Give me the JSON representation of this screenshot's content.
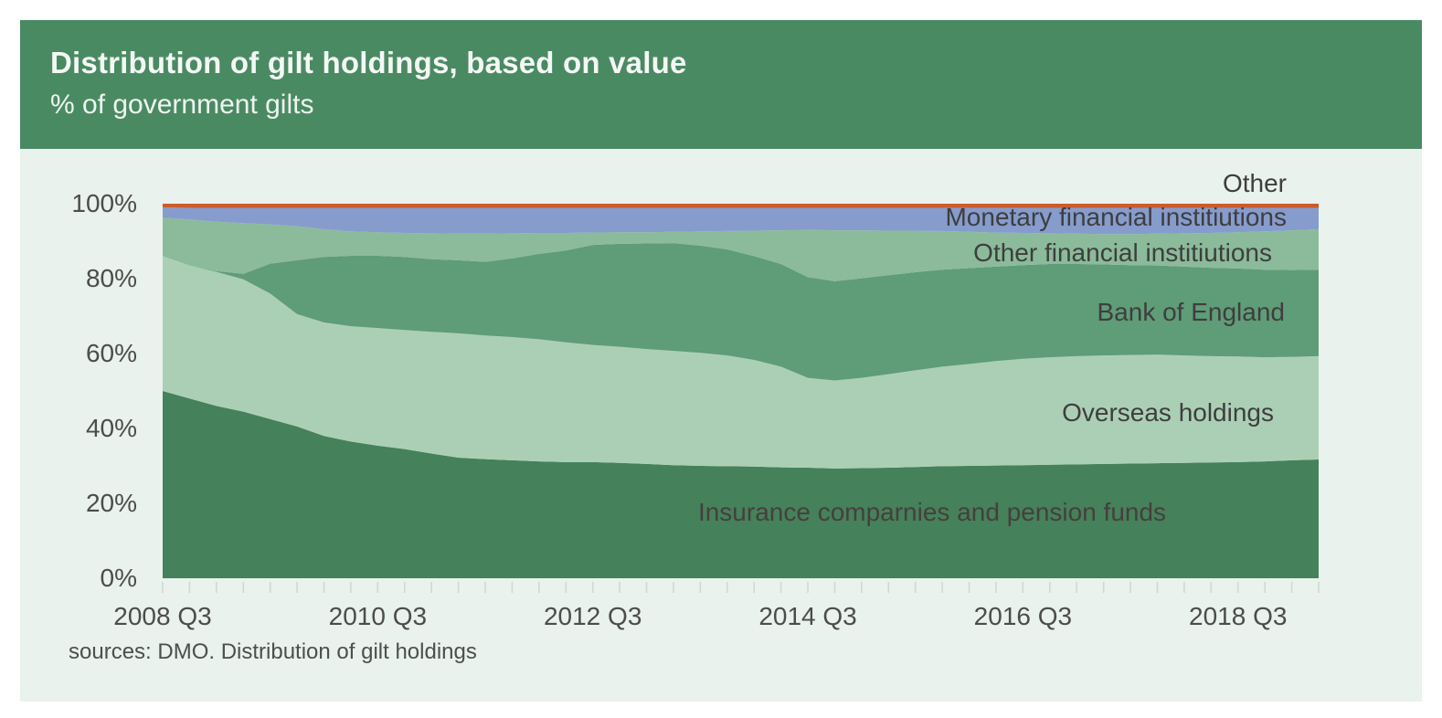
{
  "card": {
    "title": "Distribution of gilt holdings, based on value",
    "subtitle": "% of government gilts",
    "source": "sources: DMO. Distribution of gilt holdings"
  },
  "colors": {
    "header_green": "#4a8a63",
    "card_background": "#e9f2ec",
    "page_background": "#ffffff",
    "tick_gray": "#ccdbd1",
    "axis_text": "#4c4c4c",
    "label_text": "#3e3e3e"
  },
  "chart_data": {
    "type": "area",
    "stacked": true,
    "title": "Distribution of gilt holdings, based on value",
    "ylabel": "% of government gilts",
    "ylim": [
      0,
      100
    ],
    "grid": false,
    "legend_position": "labels-inside-plot",
    "x": [
      "2008 Q3",
      "2008 Q4",
      "2009 Q1",
      "2009 Q2",
      "2009 Q3",
      "2009 Q4",
      "2010 Q1",
      "2010 Q2",
      "2010 Q3",
      "2010 Q4",
      "2011 Q1",
      "2011 Q2",
      "2011 Q3",
      "2011 Q4",
      "2012 Q1",
      "2012 Q2",
      "2012 Q3",
      "2012 Q4",
      "2013 Q1",
      "2013 Q2",
      "2013 Q3",
      "2013 Q4",
      "2014 Q1",
      "2014 Q2",
      "2014 Q3",
      "2014 Q4",
      "2015 Q1",
      "2015 Q2",
      "2015 Q3",
      "2015 Q4",
      "2016 Q1",
      "2016 Q2",
      "2016 Q3",
      "2016 Q4",
      "2017 Q1",
      "2017 Q2",
      "2017 Q3",
      "2017 Q4",
      "2018 Q1",
      "2018 Q2",
      "2018 Q3",
      "2018 Q4",
      "2019 Q1",
      "2019 Q2"
    ],
    "xtick_labels": [
      "2008 Q3",
      "2010 Q3",
      "2012 Q3",
      "2014 Q3",
      "2016 Q3",
      "2018 Q3"
    ],
    "ytick_labels": [
      "0%",
      "20%",
      "40%",
      "60%",
      "80%",
      "100%"
    ],
    "series": [
      {
        "name": "insurance-companies-and-pension-funds",
        "label": "Insurance comparnies and pension funds",
        "color": "#45815a",
        "values": [
          50.0,
          48.0,
          46.0,
          44.5,
          42.5,
          40.5,
          38.0,
          36.5,
          35.4,
          34.5,
          33.3,
          32.2,
          31.8,
          31.5,
          31.2,
          31.0,
          31.0,
          30.8,
          30.5,
          30.2,
          30.0,
          29.9,
          29.8,
          29.6,
          29.5,
          29.3,
          29.4,
          29.5,
          29.7,
          29.9,
          30.0,
          30.1,
          30.2,
          30.3,
          30.4,
          30.5,
          30.6,
          30.7,
          30.8,
          30.9,
          31.0,
          31.2,
          31.5,
          31.7
        ]
      },
      {
        "name": "overseas-holdings",
        "label": "Overseas holdings",
        "color": "#abcfb5",
        "values": [
          36.0,
          35.5,
          35.8,
          35.3,
          33.5,
          30.0,
          30.3,
          30.8,
          31.4,
          31.8,
          32.5,
          33.2,
          33.0,
          32.9,
          32.6,
          32.0,
          31.3,
          31.0,
          30.7,
          30.5,
          30.2,
          29.6,
          28.5,
          26.9,
          24.0,
          23.5,
          24.1,
          25.0,
          25.8,
          26.6,
          27.2,
          27.9,
          28.4,
          28.7,
          28.9,
          29.0,
          29.0,
          29.0,
          28.7,
          28.4,
          28.2,
          27.8,
          27.6,
          27.6
        ]
      },
      {
        "name": "bank-of-england",
        "label": "Bank of England",
        "color": "#5f9c78",
        "values": [
          0.0,
          0.0,
          0.2,
          1.5,
          8.0,
          14.4,
          17.5,
          18.8,
          19.3,
          19.5,
          19.4,
          19.5,
          19.7,
          21.0,
          22.8,
          24.5,
          26.7,
          27.5,
          28.2,
          28.8,
          28.6,
          28.3,
          27.7,
          27.4,
          26.9,
          26.5,
          26.6,
          26.4,
          26.2,
          25.9,
          25.6,
          25.2,
          25.0,
          24.9,
          24.6,
          24.3,
          24.0,
          23.8,
          23.7,
          23.6,
          23.5,
          23.4,
          23.2,
          23.1
        ]
      },
      {
        "name": "other-financial-institutions",
        "label": "Other financial institiutions",
        "color": "#8bbb9a",
        "values": [
          10.3,
          12.3,
          13.2,
          13.5,
          10.5,
          9.1,
          7.4,
          6.5,
          6.3,
          6.4,
          6.9,
          7.1,
          7.5,
          6.7,
          5.6,
          4.7,
          3.3,
          3.1,
          3.0,
          3.0,
          3.8,
          4.9,
          6.8,
          9.0,
          12.6,
          13.6,
          12.8,
          11.9,
          11.1,
          10.3,
          9.7,
          9.1,
          8.6,
          8.2,
          8.1,
          8.1,
          8.3,
          8.5,
          8.9,
          9.3,
          9.7,
          10.2,
          10.6,
          10.8
        ]
      },
      {
        "name": "monetary-financial-institutions",
        "label": "Monetary financial institiutions",
        "color": "#869ccd",
        "values": [
          2.7,
          3.1,
          3.7,
          4.1,
          4.4,
          4.9,
          5.7,
          6.3,
          6.5,
          6.7,
          6.8,
          6.9,
          6.9,
          6.8,
          6.7,
          6.7,
          6.6,
          6.5,
          6.5,
          6.4,
          6.3,
          6.2,
          6.1,
          6.0,
          5.9,
          6.0,
          6.0,
          6.1,
          6.1,
          6.2,
          6.4,
          6.6,
          6.7,
          6.8,
          6.9,
          7.0,
          7.0,
          6.9,
          6.8,
          6.7,
          6.5,
          6.3,
          6.0,
          5.7
        ]
      },
      {
        "name": "other",
        "label": "Other",
        "color": "#cd5c2a",
        "values": [
          1.0,
          1.1,
          1.1,
          1.1,
          1.1,
          1.1,
          1.1,
          1.1,
          1.1,
          1.1,
          1.1,
          1.1,
          1.1,
          1.1,
          1.1,
          1.1,
          1.1,
          1.1,
          1.1,
          1.1,
          1.1,
          1.1,
          1.1,
          1.1,
          1.1,
          1.1,
          1.1,
          1.1,
          1.1,
          1.1,
          1.1,
          1.1,
          1.1,
          1.1,
          1.1,
          1.1,
          1.1,
          1.1,
          1.1,
          1.1,
          1.1,
          1.1,
          1.1,
          1.1
        ]
      }
    ]
  }
}
